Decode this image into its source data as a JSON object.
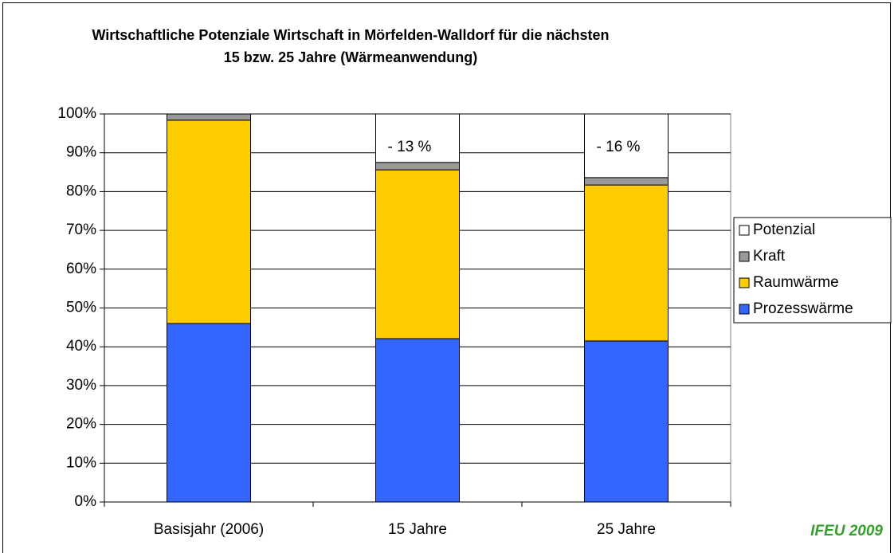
{
  "chart_data": {
    "type": "stacked_bar",
    "title": [
      "Wirtschaftliche Potenziale Wirtschaft in Mörfelden-Walldorf für die nächsten",
      "15 bzw. 25 Jahre (Wärmeanwendung)"
    ],
    "categories": [
      "Basisjahr (2006)",
      "15 Jahre",
      "25 Jahre"
    ],
    "series": [
      {
        "name": "Prozesswärme",
        "color": "#3366ff",
        "values": [
          46.0,
          42.1,
          41.5
        ]
      },
      {
        "name": "Raumwärme",
        "color": "#ffcc00",
        "values": [
          52.4,
          43.5,
          40.2
        ]
      },
      {
        "name": "Kraft",
        "color": "#999999",
        "values": [
          1.6,
          1.9,
          1.9
        ]
      },
      {
        "name": "Potenzial",
        "color": "#ffffff",
        "values": [
          0,
          12.5,
          16.4
        ],
        "value_labels": [
          null,
          "- 13 %",
          "- 16 %"
        ]
      }
    ],
    "ylim": [
      0,
      100
    ],
    "yticks": [
      {
        "value": 0,
        "label": "0%"
      },
      {
        "value": 10,
        "label": "10%"
      },
      {
        "value": 20,
        "label": "20%"
      },
      {
        "value": 30,
        "label": "30%"
      },
      {
        "value": 40,
        "label": "40%"
      },
      {
        "value": 50,
        "label": "50%"
      },
      {
        "value": 60,
        "label": "60%"
      },
      {
        "value": 70,
        "label": "70%"
      },
      {
        "value": 80,
        "label": "80%"
      },
      {
        "value": 90,
        "label": "90%"
      },
      {
        "value": 100,
        "label": "100%"
      }
    ],
    "grid": true,
    "legend": "right",
    "source": "IFEU 2009"
  }
}
